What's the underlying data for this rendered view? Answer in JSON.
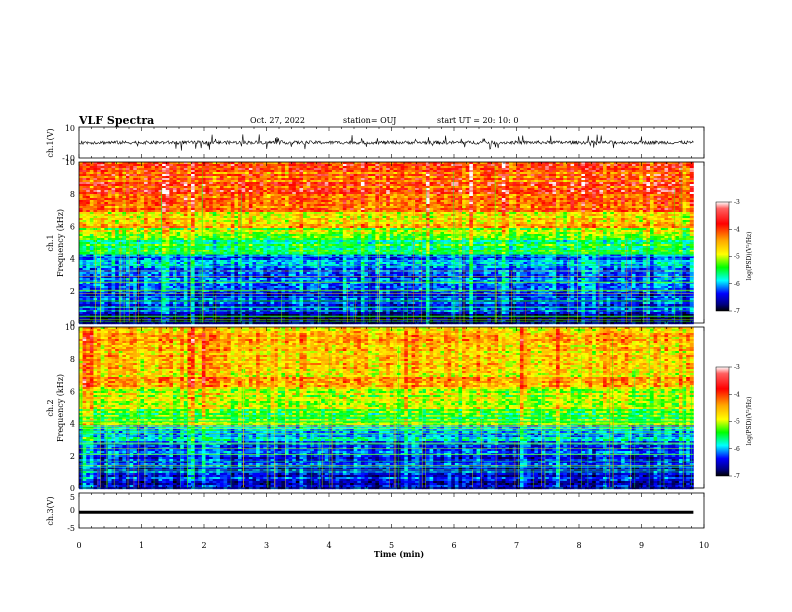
{
  "header": {
    "title": "VLF Spectra",
    "date": "Oct. 27, 2022",
    "station": "station= OUJ",
    "start": "start  UT =   20: 10: 0"
  },
  "chart_data": [
    {
      "type": "line",
      "ylabel": "ch.1(V)",
      "ylim": [
        -10,
        10
      ],
      "yticks": [
        "10",
        "-10"
      ],
      "xlim": [
        0,
        10
      ],
      "description_level": "noisy waveform near 0 V with spikes"
    },
    {
      "type": "heatmap",
      "ylabel_top": "ch.1",
      "ylabel": "Frequency  (kHz)",
      "ylim": [
        0,
        10
      ],
      "yticks": [
        "0",
        "2",
        "4",
        "6",
        "8",
        "10"
      ],
      "xlim": [
        0,
        9.83
      ],
      "colorbar": {
        "label": "log(PSD)(V²/Hz)",
        "range": [
          -7,
          -3
        ],
        "ticks": [
          "-3",
          "-4",
          "-5",
          "-6",
          "-7"
        ],
        "colors": [
          "#ffffff",
          "#ff0000",
          "#ff8c00",
          "#ffff00",
          "#00ff00",
          "#00ffff",
          "#0000ff",
          "#00008b",
          "#000000"
        ]
      },
      "bands": [
        {
          "from": 0,
          "to": 0.6,
          "value": -6.6
        },
        {
          "from": 0.6,
          "to": 2.4,
          "value": -6.2
        },
        {
          "from": 2.4,
          "to": 3.2,
          "value": -6.0
        },
        {
          "from": 3.2,
          "to": 4.4,
          "value": -5.9
        },
        {
          "from": 4.4,
          "to": 5.2,
          "value": -5.2
        },
        {
          "from": 5.2,
          "to": 6.0,
          "value": -4.7
        },
        {
          "from": 6.0,
          "to": 7.0,
          "value": -4.3
        },
        {
          "from": 7.0,
          "to": 10,
          "value": -3.8
        }
      ]
    },
    {
      "type": "heatmap",
      "ylabel_top": "ch.2",
      "ylabel": "Frequency  (kHz)",
      "ylim": [
        0,
        10
      ],
      "yticks": [
        "0",
        "2",
        "4",
        "6",
        "8",
        "10"
      ],
      "xlim": [
        0,
        9.83
      ],
      "colorbar": {
        "label": "log(PSD)(V²/Hz)",
        "range": [
          -7,
          -3
        ],
        "ticks": [
          "-3",
          "-4",
          "-5",
          "-6",
          "-7"
        ],
        "colors": [
          "#ffffff",
          "#ff0000",
          "#ff8c00",
          "#ffff00",
          "#00ff00",
          "#00ffff",
          "#0000ff",
          "#00008b",
          "#000000"
        ]
      },
      "bands": [
        {
          "from": 0,
          "to": 0.6,
          "value": -6.4
        },
        {
          "from": 0.6,
          "to": 2.2,
          "value": -6.2
        },
        {
          "from": 2.2,
          "to": 3.0,
          "value": -6.0
        },
        {
          "from": 3.0,
          "to": 4.0,
          "value": -5.7
        },
        {
          "from": 4.0,
          "to": 5.0,
          "value": -5.0
        },
        {
          "from": 5.0,
          "to": 6.2,
          "value": -4.6
        },
        {
          "from": 6.2,
          "to": 10,
          "value": -4.2
        }
      ]
    },
    {
      "type": "line",
      "ylabel": "ch.3(V)",
      "ylim": [
        -5,
        5
      ],
      "yticks": [
        "5",
        "0",
        "-5"
      ],
      "xlim": [
        0,
        10
      ],
      "level": -0.5
    }
  ],
  "xaxis": {
    "label": "Time  (min)",
    "ticks": [
      "0",
      "1",
      "2",
      "3",
      "4",
      "5",
      "6",
      "7",
      "8",
      "9",
      "10"
    ],
    "range": [
      0,
      10
    ]
  }
}
